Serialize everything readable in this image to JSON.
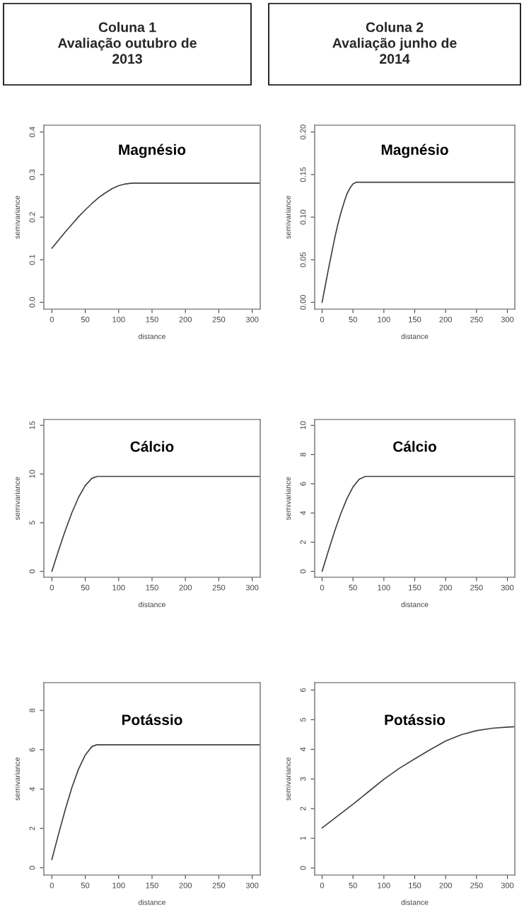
{
  "chart_data": [
    {
      "type": "line",
      "title": "Magnésio",
      "xlabel": "distance",
      "ylabel": "semivariance",
      "annotations": [
        "Coluna 1\nAvaliação outubro de\n2013"
      ],
      "x": [
        0,
        10,
        20,
        30,
        40,
        50,
        60,
        70,
        80,
        90,
        100,
        110,
        120,
        311
      ],
      "series": [
        {
          "color": "#404040",
          "values": [
            0.127,
            0.146,
            0.165,
            0.183,
            0.201,
            0.217,
            0.232,
            0.246,
            0.257,
            0.267,
            0.274,
            0.278,
            0.28,
            0.28
          ]
        }
      ],
      "xlim": [
        -12,
        312
      ],
      "xticks": [
        0,
        50,
        100,
        150,
        200,
        250,
        300
      ],
      "ylim": [
        -0.016,
        0.416
      ],
      "yticks": [
        {
          "value": 0,
          "label": "0.0"
        },
        0.1,
        0.2,
        0.3,
        0.4
      ],
      "grid": false,
      "line_style": "solid"
    },
    {
      "type": "line",
      "title": "Magnésio",
      "xlabel": "distance",
      "ylabel": "semivariance",
      "annotations": [
        "Coluna 2\nAvaliação junho de\n2014"
      ],
      "x": [
        0,
        5,
        10,
        15,
        20,
        25,
        30,
        35,
        40,
        45,
        50,
        55,
        311
      ],
      "series": [
        {
          "color": "#404040",
          "values": [
            0.0,
            0.019,
            0.038,
            0.056,
            0.074,
            0.09,
            0.104,
            0.116,
            0.127,
            0.134,
            0.139,
            0.141,
            0.141
          ]
        }
      ],
      "xlim": [
        -12,
        312
      ],
      "xticks": [
        0,
        50,
        100,
        150,
        200,
        250,
        300
      ],
      "ylim": [
        -0.008,
        0.208
      ],
      "yticks": [
        {
          "value": 0.0,
          "label": "0.00"
        },
        {
          "value": 0.05,
          "label": "0.05"
        },
        {
          "value": 0.1,
          "label": "0.10"
        },
        {
          "value": 0.15,
          "label": "0.15"
        },
        {
          "value": 0.2,
          "label": "0.20"
        }
      ],
      "grid": false,
      "line_style": "solid"
    },
    {
      "type": "line",
      "title": "Cálcio",
      "xlabel": "distance",
      "ylabel": "semivariance",
      "x": [
        0,
        10,
        20,
        30,
        40,
        50,
        60,
        68,
        311
      ],
      "series": [
        {
          "color": "#404040",
          "values": [
            0.0,
            2.14,
            4.18,
            6.03,
            7.61,
            8.82,
            9.56,
            9.75,
            9.75
          ]
        }
      ],
      "xlim": [
        -12,
        312
      ],
      "xticks": [
        0,
        50,
        100,
        150,
        200,
        250,
        300
      ],
      "ylim": [
        -0.6,
        15.6
      ],
      "yticks": [
        0,
        5,
        10,
        15
      ],
      "grid": false,
      "line_style": "solid"
    },
    {
      "type": "line",
      "title": "Cálcio",
      "xlabel": "distance",
      "ylabel": "semivariance",
      "x": [
        0,
        10,
        20,
        30,
        40,
        50,
        60,
        70,
        311
      ],
      "series": [
        {
          "color": "#404040",
          "values": [
            0.0,
            1.38,
            2.71,
            3.92,
            4.96,
            5.78,
            6.31,
            6.5,
            6.5
          ]
        }
      ],
      "xlim": [
        -12,
        312
      ],
      "xticks": [
        0,
        50,
        100,
        150,
        200,
        250,
        300
      ],
      "ylim": [
        -0.4,
        10.4
      ],
      "yticks": [
        0,
        2,
        4,
        6,
        8,
        10
      ],
      "grid": false,
      "line_style": "solid"
    },
    {
      "type": "line",
      "title": "Potássio",
      "xlabel": "distance",
      "ylabel": "semivariance",
      "x": [
        0,
        10,
        20,
        30,
        40,
        50,
        60,
        67,
        311
      ],
      "series": [
        {
          "color": "#404040",
          "values": [
            0.42,
            1.71,
            2.95,
            4.08,
            5.02,
            5.73,
            6.16,
            6.25,
            6.25
          ]
        }
      ],
      "xlim": [
        -12,
        312
      ],
      "xticks": [
        0,
        50,
        100,
        150,
        200,
        250,
        300
      ],
      "ylim": [
        -0.37,
        9.41
      ],
      "yticks": [
        0,
        2,
        4,
        6,
        8
      ],
      "grid": false,
      "line_style": "solid"
    },
    {
      "type": "line",
      "title": "Potássio",
      "xlabel": "distance",
      "ylabel": "semivariance",
      "x": [
        0,
        25,
        50,
        75,
        100,
        125,
        150,
        175,
        200,
        225,
        250,
        275,
        300,
        311
      ],
      "series": [
        {
          "color": "#404040",
          "values": [
            1.35,
            1.75,
            2.15,
            2.57,
            2.99,
            3.36,
            3.68,
            3.99,
            4.28,
            4.49,
            4.63,
            4.71,
            4.75,
            4.76
          ]
        }
      ],
      "xlim": [
        -12,
        312
      ],
      "xticks": [
        0,
        50,
        100,
        150,
        200,
        250,
        300
      ],
      "ylim": [
        -0.24,
        6.25
      ],
      "yticks": [
        0,
        1,
        2,
        3,
        4,
        5,
        6
      ],
      "grid": false,
      "line_style": "solid"
    }
  ]
}
